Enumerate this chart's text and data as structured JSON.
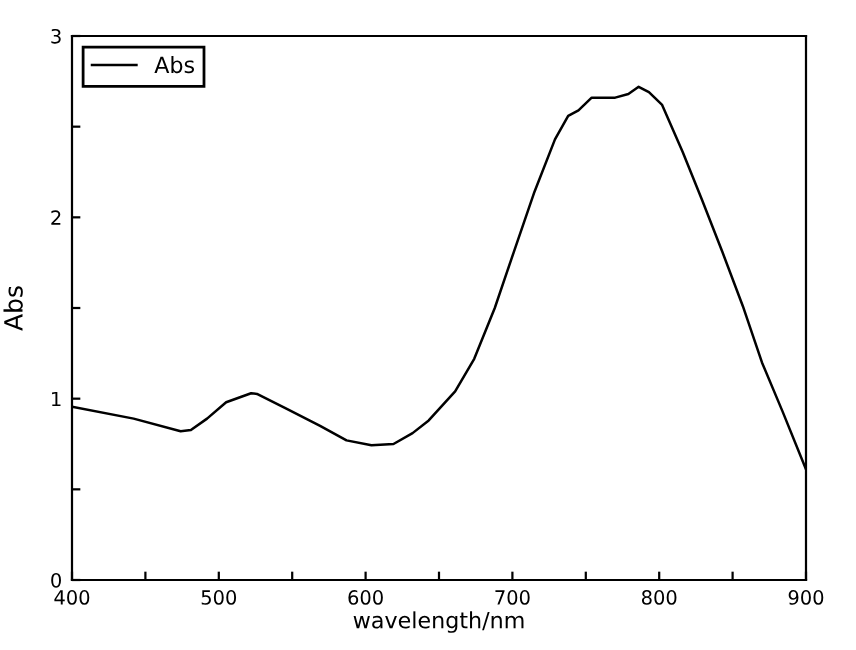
{
  "chart_data": {
    "type": "line",
    "xlabel": "wavelength/nm",
    "ylabel": "Abs",
    "x": [
      400,
      442,
      474,
      481,
      492,
      505,
      522,
      526,
      546,
      569,
      587,
      604,
      619,
      632,
      643,
      661,
      674,
      688,
      701,
      715,
      729,
      738,
      745,
      754,
      770,
      779,
      786,
      793,
      802,
      816,
      829,
      843,
      857,
      870,
      884,
      900
    ],
    "series": [
      {
        "name": "Abs",
        "color": "#000000",
        "values": [
          0.956,
          0.89,
          0.82,
          0.827,
          0.89,
          0.98,
          1.03,
          1.026,
          0.945,
          0.85,
          0.77,
          0.743,
          0.75,
          0.81,
          0.88,
          1.04,
          1.22,
          1.5,
          1.81,
          2.14,
          2.43,
          2.56,
          2.59,
          2.66,
          2.66,
          2.68,
          2.72,
          2.69,
          2.62,
          2.36,
          2.1,
          1.81,
          1.51,
          1.2,
          0.93,
          0.61
        ]
      }
    ],
    "xlim": [
      400,
      900
    ],
    "ylim": [
      0,
      3
    ],
    "xticks": [
      400,
      {
        "value": 450,
        "label": null
      },
      500,
      {
        "value": 550,
        "label": null
      },
      600,
      {
        "value": 650,
        "label": null
      },
      700,
      {
        "value": 750,
        "label": null
      },
      800,
      {
        "value": 850,
        "label": null
      },
      900
    ],
    "yticks": [
      0,
      {
        "value": 0.5,
        "label": null
      },
      1,
      {
        "value": 1.5,
        "label": null
      },
      2,
      {
        "value": 2.5,
        "label": null
      },
      3
    ],
    "legend": "top left",
    "grid": false,
    "marker": "none",
    "line_style": "solid"
  }
}
